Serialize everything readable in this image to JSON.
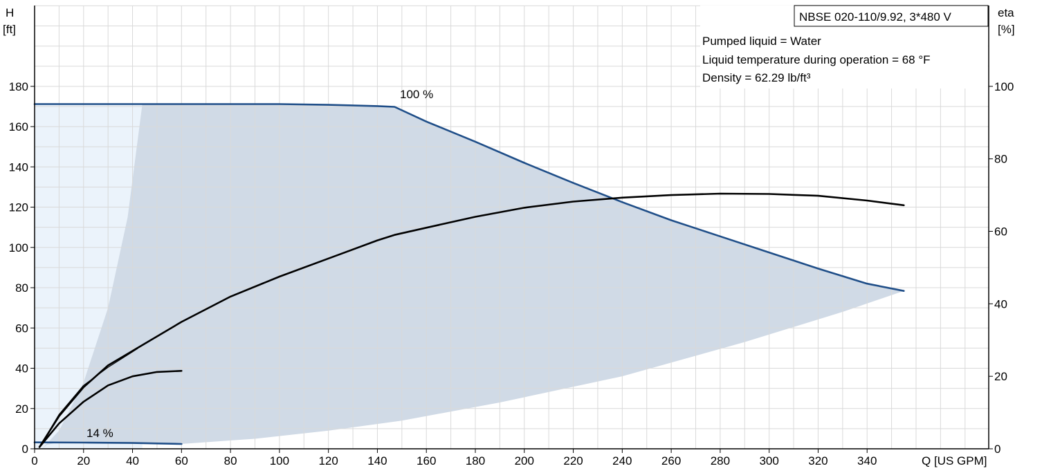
{
  "chart_data": {
    "type": "line",
    "title": "NBSE 020-110/9.92, 3*480 V",
    "info_lines": [
      "Pumped liquid = Water",
      "Liquid temperature during operation = 68 °F",
      "Density = 62.29 lb/ft³"
    ],
    "y_axis_left": {
      "label_top": "H",
      "label_unit": "[ft]",
      "range": [
        0,
        180
      ],
      "ticks": [
        0,
        20,
        40,
        60,
        80,
        100,
        120,
        140,
        160,
        180
      ]
    },
    "y_axis_right": {
      "label_top": "eta",
      "label_unit": "[%]",
      "range": [
        0,
        100
      ],
      "ticks": [
        0,
        20,
        40,
        60,
        80,
        100
      ]
    },
    "x_axis": {
      "label": "Q [US GPM]",
      "range": [
        0,
        360
      ],
      "ticks": [
        0,
        20,
        40,
        60,
        80,
        100,
        120,
        140,
        160,
        180,
        200,
        220,
        240,
        260,
        280,
        300,
        320,
        340
      ]
    },
    "grid": true,
    "curve_labels": {
      "speed_max": "100 %",
      "speed_min": "14 %"
    },
    "series": [
      {
        "role": "head-100",
        "color": "#1f4e88",
        "axis": "left",
        "points": [
          [
            0,
            171.2
          ],
          [
            20,
            171.2
          ],
          [
            42,
            171.2
          ],
          [
            60,
            171.2
          ],
          [
            80,
            171.2
          ],
          [
            100,
            171.2
          ],
          [
            120,
            170.8
          ],
          [
            140,
            170.2
          ],
          [
            147,
            169.8
          ],
          [
            160,
            162.5
          ],
          [
            180,
            152.5
          ],
          [
            200,
            142.0
          ],
          [
            220,
            132.0
          ],
          [
            240,
            122.5
          ],
          [
            260,
            113.5
          ],
          [
            280,
            105.5
          ],
          [
            300,
            97.5
          ],
          [
            320,
            89.5
          ],
          [
            340,
            82.0
          ],
          [
            355,
            78.4
          ]
        ]
      },
      {
        "role": "head-14",
        "color": "#1f4e88",
        "axis": "left",
        "points": [
          [
            0,
            3.2
          ],
          [
            20,
            3.1
          ],
          [
            40,
            2.9
          ],
          [
            60,
            2.4
          ]
        ]
      },
      {
        "role": "eta-100",
        "color": "#000000",
        "axis": "right",
        "points": [
          [
            2,
            0.5
          ],
          [
            10,
            9
          ],
          [
            20,
            17
          ],
          [
            30,
            23
          ],
          [
            42,
            27.8
          ],
          [
            60,
            35
          ],
          [
            80,
            42
          ],
          [
            100,
            47.5
          ],
          [
            120,
            52.5
          ],
          [
            140,
            57.5
          ],
          [
            147,
            59
          ],
          [
            160,
            61
          ],
          [
            180,
            64
          ],
          [
            200,
            66.5
          ],
          [
            220,
            68.2
          ],
          [
            240,
            69.3
          ],
          [
            260,
            70
          ],
          [
            280,
            70.4
          ],
          [
            300,
            70.3
          ],
          [
            320,
            69.8
          ],
          [
            340,
            68.5
          ],
          [
            355,
            67.2
          ]
        ]
      },
      {
        "role": "eta-14",
        "color": "#000000",
        "axis": "right",
        "points": [
          [
            2,
            0.5
          ],
          [
            10,
            7
          ],
          [
            20,
            13
          ],
          [
            30,
            17.5
          ],
          [
            40,
            20
          ],
          [
            50,
            21.2
          ],
          [
            60,
            21.5
          ]
        ]
      },
      {
        "role": "eta-100-thin",
        "color": "#000000",
        "axis": "right",
        "points": [
          [
            2,
            0.5
          ],
          [
            10,
            9.5
          ],
          [
            20,
            17.5
          ],
          [
            30,
            22.5
          ],
          [
            42,
            27.6
          ]
        ]
      }
    ],
    "regions": {
      "light_area_color": "#ebf3fb",
      "operating_area_color": "#d0dae6"
    }
  }
}
